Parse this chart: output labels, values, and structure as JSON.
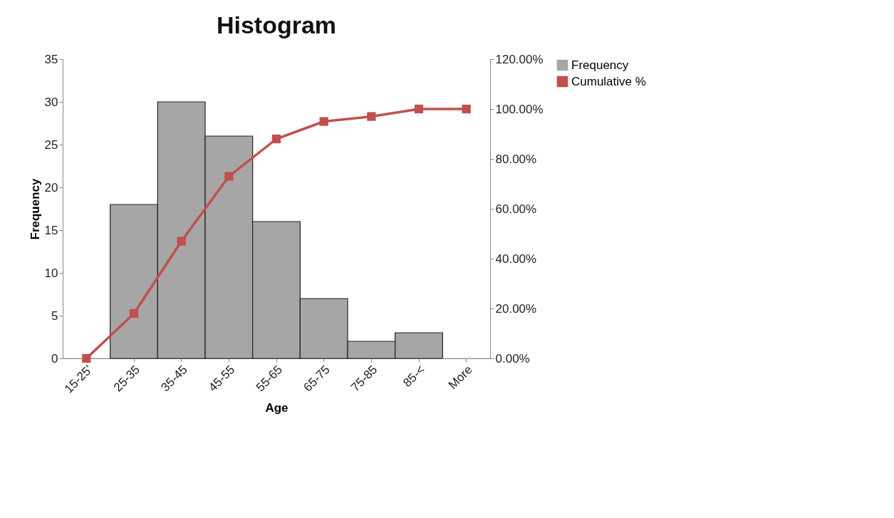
{
  "chart_data": {
    "type": "bar",
    "title": "Histogram",
    "xlabel": "Age",
    "ylabel": "Frequency",
    "categories": [
      "15-25'",
      "25-35",
      "35-45",
      "45-55",
      "55-65",
      "65-75",
      "75-85",
      "85-<",
      "More"
    ],
    "series": [
      {
        "name": "Frequency",
        "color": "#a6a6a6",
        "values": [
          0,
          18,
          30,
          26,
          16,
          7,
          2,
          3,
          0
        ]
      },
      {
        "name": "Cumulative %",
        "type": "line",
        "axis": "y2",
        "color": "#c0504d",
        "marker": "square",
        "values": [
          0,
          18,
          47,
          73,
          88,
          95,
          97,
          100,
          100
        ]
      }
    ],
    "ylim": [
      0,
      35
    ],
    "yticks": [
      0,
      5,
      10,
      15,
      20,
      25,
      30,
      35
    ],
    "y2lim": [
      0,
      120
    ],
    "y2ticks": [
      {
        "value": 0,
        "label": "0.00%"
      },
      {
        "value": 20,
        "label": "20.00%"
      },
      {
        "value": 40,
        "label": "40.00%"
      },
      {
        "value": 60,
        "label": "60.00%"
      },
      {
        "value": 80,
        "label": "80.00%"
      },
      {
        "value": 100,
        "label": "100.00%"
      },
      {
        "value": 120,
        "label": "120.00%"
      }
    ],
    "legend": "right",
    "grid": false
  }
}
